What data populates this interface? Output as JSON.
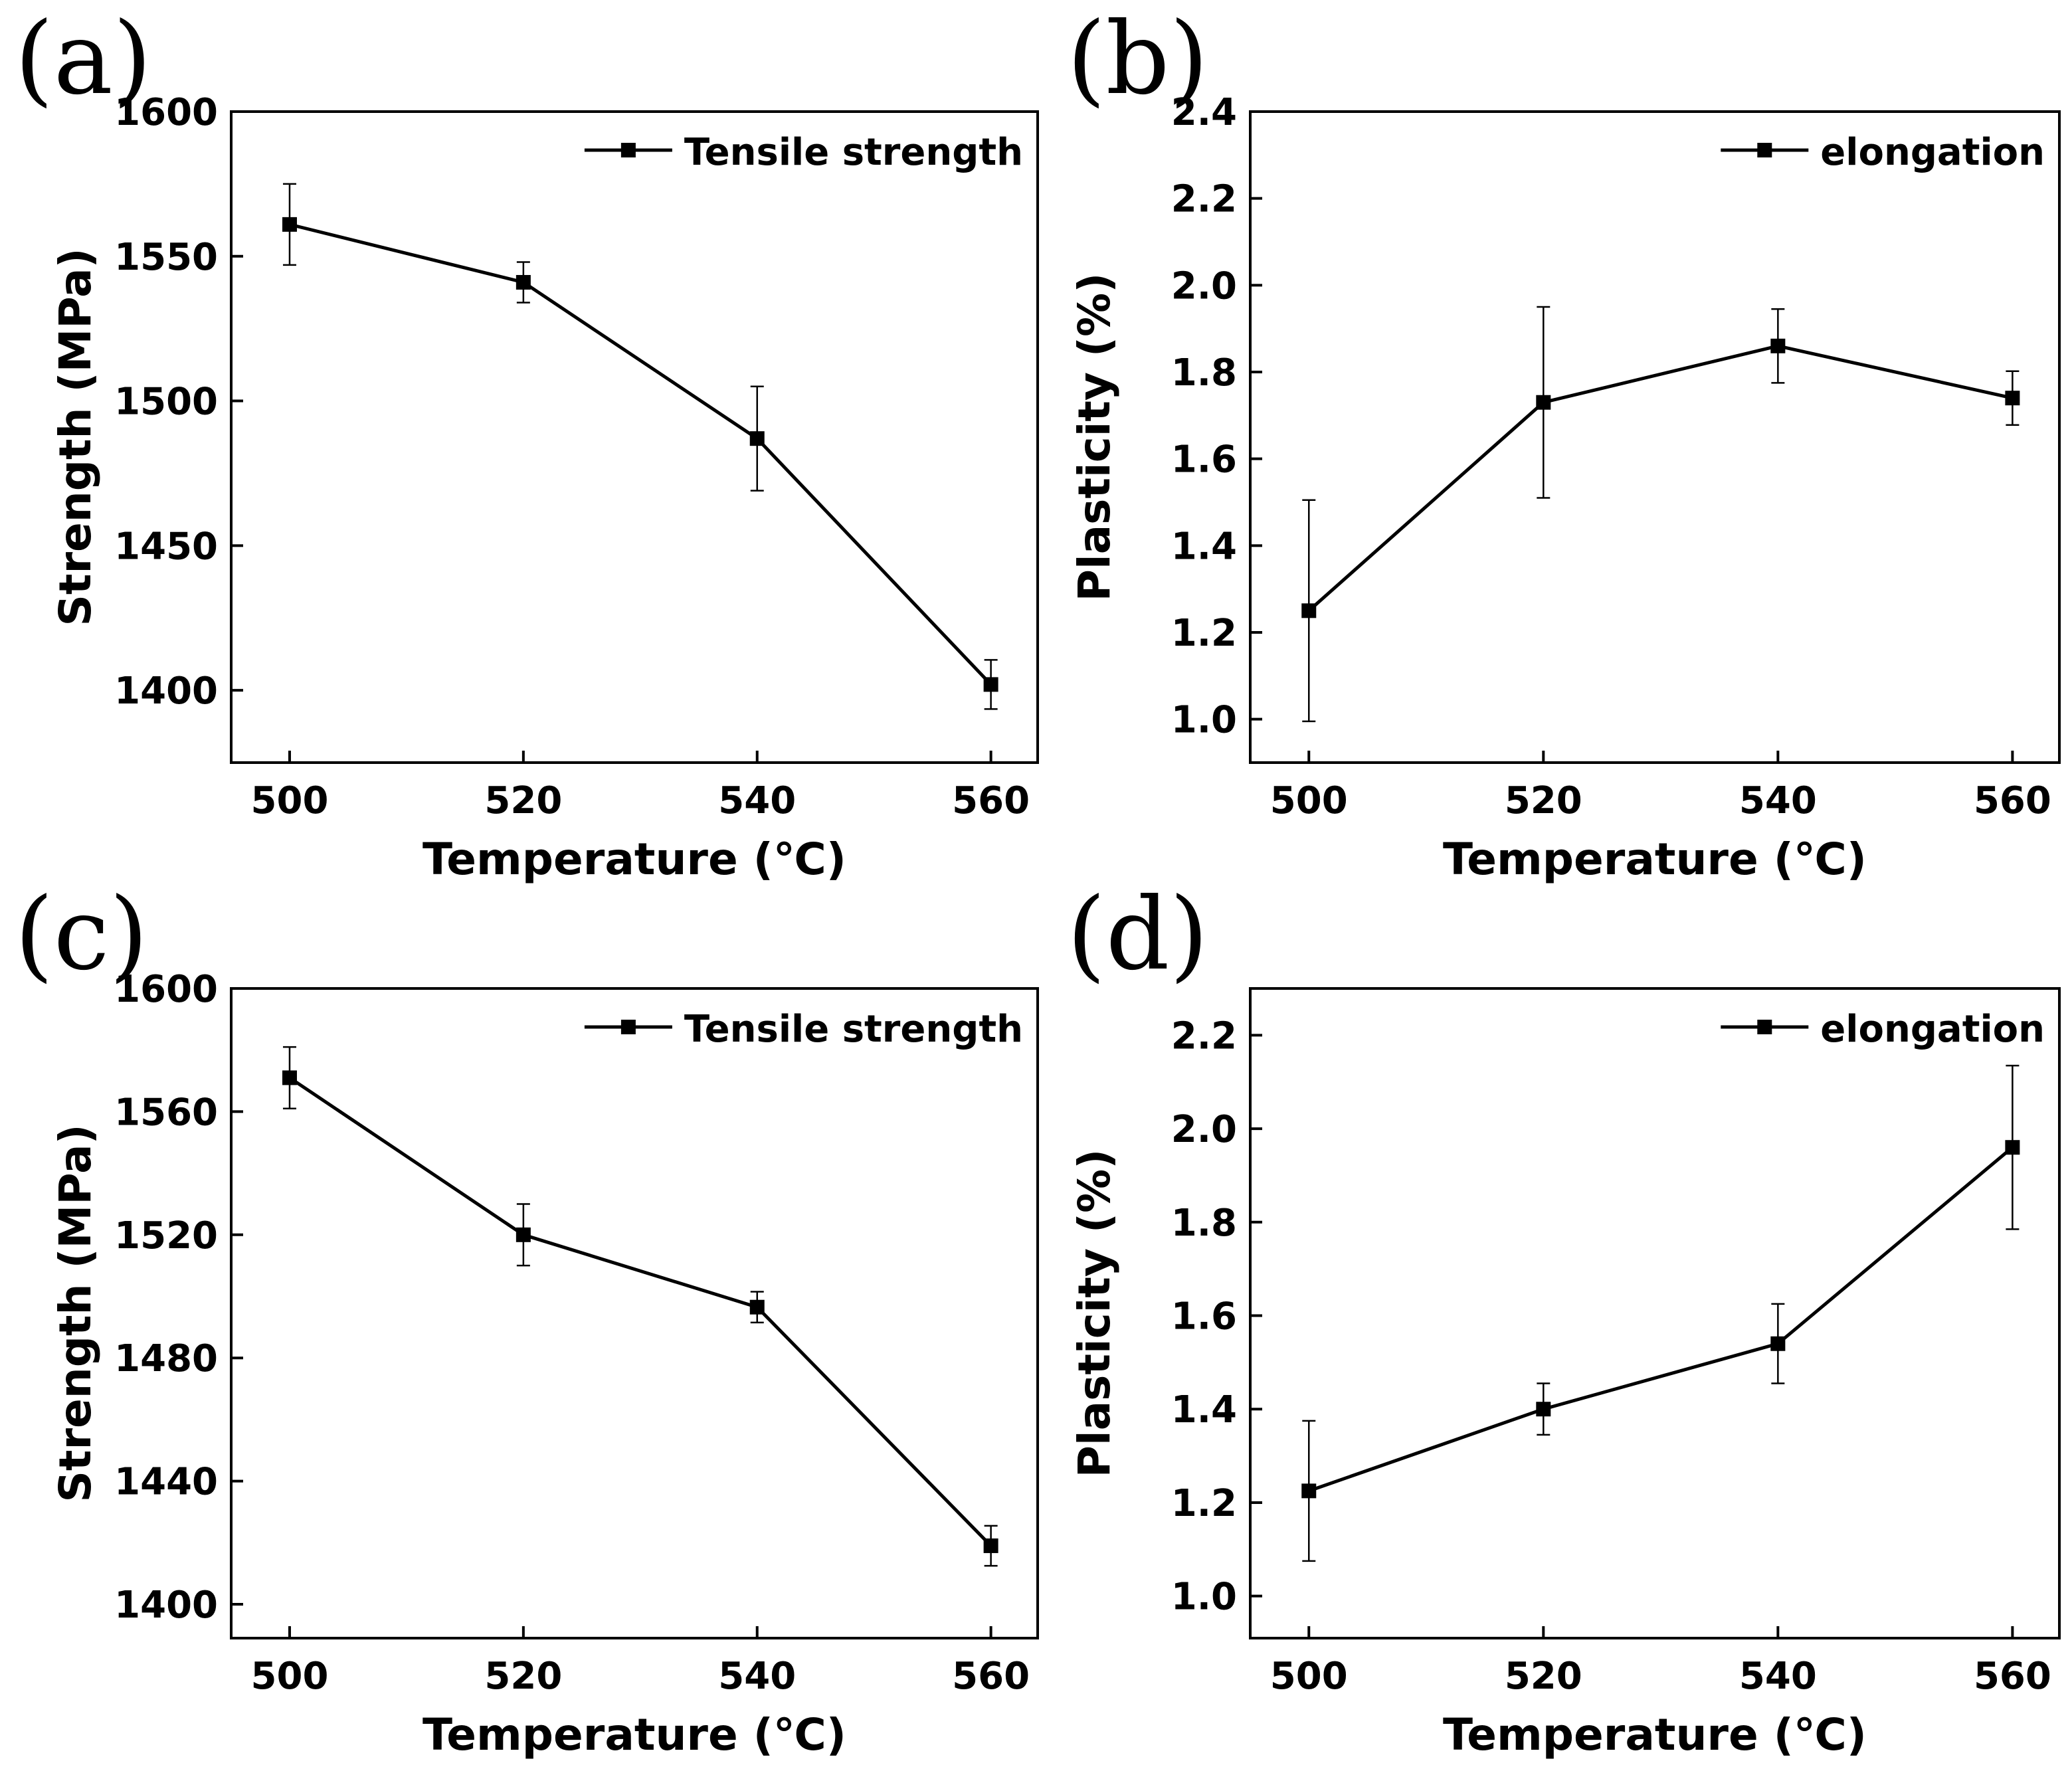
{
  "colors": {
    "line": "#000000",
    "background": "#ffffff"
  },
  "chart_data": [
    {
      "panel": "(a)",
      "type": "line",
      "xlabel": "Temperature (℃)",
      "ylabel": "Strength (MPa)",
      "xlim": [
        495,
        564
      ],
      "ylim": [
        1375,
        1600
      ],
      "xticks": [
        "500",
        "520",
        "540",
        "560"
      ],
      "yticks": [
        "1400",
        "1450",
        "1500",
        "1550",
        "1600"
      ],
      "legend": "top-right",
      "marker": "square",
      "series": [
        {
          "name": "Tensile strength",
          "x": [
            500,
            520,
            540,
            560
          ],
          "y": [
            1561,
            1541,
            1487,
            1402
          ],
          "err": [
            14,
            7,
            18,
            8.5
          ]
        }
      ]
    },
    {
      "panel": "(b)",
      "type": "line",
      "xlabel": "Temperature (℃)",
      "ylabel": "Plasticity (%)",
      "xlim": [
        495,
        564
      ],
      "ylim": [
        0.9,
        2.4
      ],
      "xticks": [
        "500",
        "520",
        "540",
        "560"
      ],
      "yticks": [
        "1.0",
        "1.2",
        "1.4",
        "1.6",
        "1.8",
        "2.0",
        "2.2",
        "2.4"
      ],
      "legend": "top-right",
      "marker": "square",
      "series": [
        {
          "name": "elongation",
          "x": [
            500,
            520,
            540,
            560
          ],
          "y": [
            1.25,
            1.73,
            1.86,
            1.74
          ],
          "err": [
            0.255,
            0.22,
            0.085,
            0.062
          ]
        }
      ]
    },
    {
      "panel": "(c)",
      "type": "line",
      "xlabel": "Temperature (℃)",
      "ylabel": "Strength (MPa)",
      "xlim": [
        495,
        564
      ],
      "ylim": [
        1389,
        1600
      ],
      "xticks": [
        "500",
        "520",
        "540",
        "560"
      ],
      "yticks": [
        "1400",
        "1440",
        "1480",
        "1520",
        "1560",
        "1600"
      ],
      "legend": "top-right",
      "marker": "square",
      "series": [
        {
          "name": "Tensile strength",
          "x": [
            500,
            520,
            540,
            560
          ],
          "y": [
            1571,
            1520,
            1496.5,
            1419
          ],
          "err": [
            10,
            10,
            5,
            6.5
          ]
        }
      ]
    },
    {
      "panel": "(d)",
      "type": "line",
      "xlabel": "Temperature (℃)",
      "ylabel": "Plasticity (%)",
      "xlim": [
        495,
        564
      ],
      "ylim": [
        0.91,
        2.3
      ],
      "xticks": [
        "500",
        "520",
        "540",
        "560"
      ],
      "yticks": [
        "1.0",
        "1.2",
        "1.4",
        "1.6",
        "1.8",
        "2.0",
        "2.2"
      ],
      "legend": "top-right",
      "marker": "square",
      "series": [
        {
          "name": "elongation",
          "x": [
            500,
            520,
            540,
            560
          ],
          "y": [
            1.225,
            1.4,
            1.54,
            1.96
          ],
          "err": [
            0.15,
            0.055,
            0.085,
            0.175
          ]
        }
      ]
    }
  ]
}
